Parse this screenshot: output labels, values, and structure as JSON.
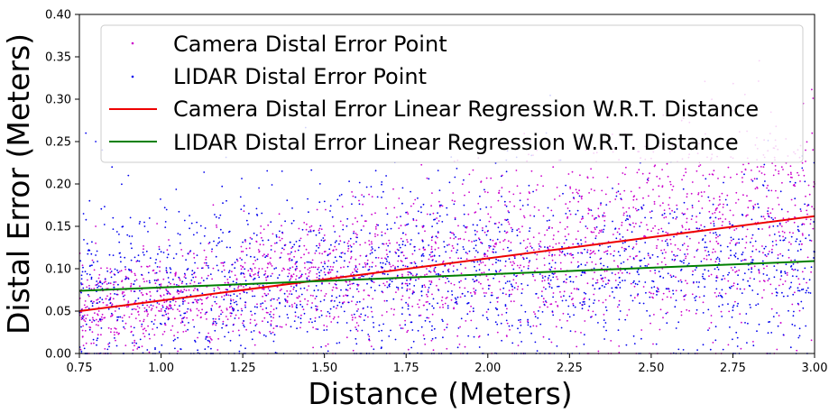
{
  "chart_data": {
    "type": "scatter",
    "title": "",
    "xlabel": "Distance (Meters)",
    "ylabel": "Distal Error (Meters)",
    "xlim": [
      0.75,
      3.0
    ],
    "ylim": [
      0.0,
      0.4
    ],
    "x_ticks": [
      "0.75",
      "1.00",
      "1.25",
      "1.50",
      "1.75",
      "2.00",
      "2.25",
      "2.50",
      "2.75",
      "3.00"
    ],
    "y_ticks": [
      "0.00",
      "0.05",
      "0.10",
      "0.15",
      "0.20",
      "0.25",
      "0.30",
      "0.35",
      "0.40"
    ],
    "grid": false,
    "legend_position": "top-right",
    "series": [
      {
        "name": "Camera Distal Error Point",
        "kind": "scatter",
        "color": "#cc00cc",
        "approx_trend": {
          "x_range": [
            0.75,
            3.0
          ],
          "y_at_start": 0.05,
          "y_at_end": 0.162
        },
        "sample_points": [
          [
            0.78,
            0.0
          ],
          [
            0.78,
            0.08
          ],
          [
            0.79,
            0.11
          ],
          [
            0.8,
            0.15
          ],
          [
            0.8,
            0.13
          ],
          [
            0.81,
            0.05
          ],
          [
            0.82,
            0.04
          ],
          [
            0.84,
            0.03
          ],
          [
            0.86,
            0.05
          ],
          [
            0.9,
            0.06
          ],
          [
            0.95,
            0.02
          ],
          [
            1.0,
            0.05
          ],
          [
            1.1,
            0.08
          ],
          [
            1.2,
            0.07
          ],
          [
            1.3,
            0.1
          ],
          [
            1.4,
            0.11
          ],
          [
            1.5,
            0.12
          ],
          [
            1.6,
            0.14
          ],
          [
            1.7,
            0.13
          ],
          [
            1.8,
            0.15
          ],
          [
            1.9,
            0.16
          ],
          [
            2.0,
            0.19
          ],
          [
            2.1,
            0.17
          ],
          [
            2.2,
            0.22
          ],
          [
            2.3,
            0.24
          ],
          [
            2.4,
            0.2
          ],
          [
            2.5,
            0.23
          ],
          [
            2.6,
            0.21
          ],
          [
            2.7,
            0.25
          ],
          [
            2.8,
            0.18
          ],
          [
            2.9,
            0.22
          ],
          [
            3.0,
            0.2
          ]
        ]
      },
      {
        "name": "LIDAR Distal Error Point",
        "kind": "scatter",
        "color": "#0000ee",
        "approx_trend": {
          "x_range": [
            0.75,
            3.0
          ],
          "y_at_start": 0.074,
          "y_at_end": 0.109
        },
        "sample_points": [
          [
            0.77,
            0.26
          ],
          [
            0.8,
            0.25
          ],
          [
            0.82,
            0.24
          ],
          [
            0.85,
            0.22
          ],
          [
            0.9,
            0.21
          ],
          [
            0.95,
            0.15
          ],
          [
            1.0,
            0.12
          ],
          [
            1.1,
            0.14
          ],
          [
            1.2,
            0.18
          ],
          [
            1.3,
            0.09
          ],
          [
            1.4,
            0.07
          ],
          [
            1.5,
            0.1
          ],
          [
            1.6,
            0.05
          ],
          [
            1.7,
            0.12
          ],
          [
            1.8,
            0.08
          ],
          [
            1.9,
            0.06
          ],
          [
            2.0,
            0.04
          ],
          [
            2.1,
            0.13
          ],
          [
            2.2,
            0.09
          ],
          [
            2.3,
            0.15
          ],
          [
            2.4,
            0.12
          ],
          [
            2.5,
            0.16
          ],
          [
            2.6,
            0.11
          ],
          [
            2.7,
            0.14
          ],
          [
            2.8,
            0.08
          ],
          [
            2.9,
            0.17
          ],
          [
            3.0,
            0.12
          ]
        ]
      },
      {
        "name": "Camera Distal Error Linear Regression W.R.T. Distance",
        "kind": "line",
        "color": "#ee0000",
        "x": [
          0.75,
          3.0
        ],
        "y": [
          0.05,
          0.162
        ]
      },
      {
        "name": "LIDAR Distal Error Linear Regression W.R.T. Distance",
        "kind": "line",
        "color": "#008000",
        "x": [
          0.75,
          3.0
        ],
        "y": [
          0.074,
          0.109
        ]
      }
    ]
  }
}
